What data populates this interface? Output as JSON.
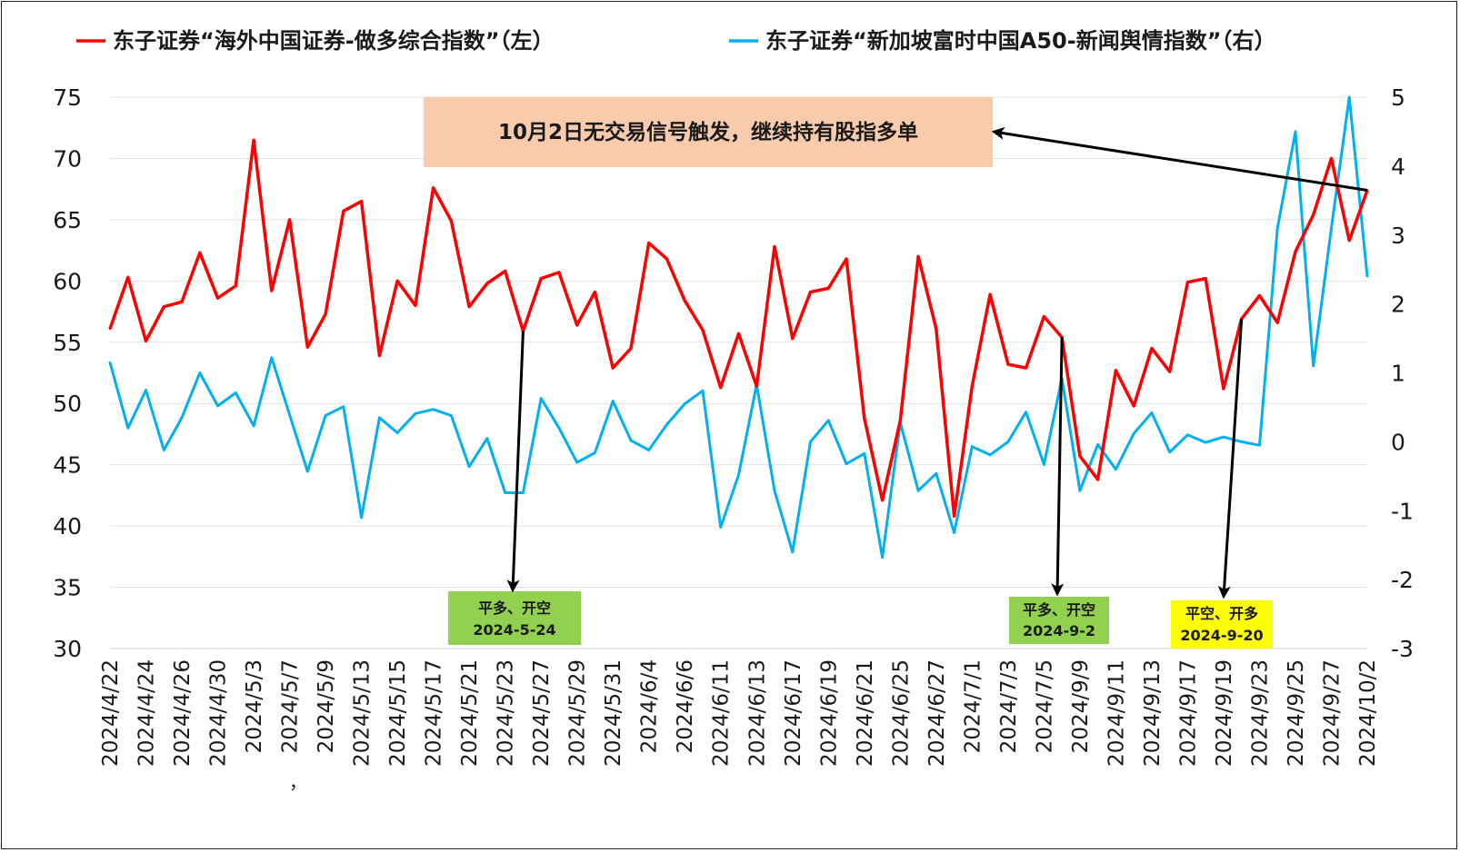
{
  "chart_data": {
    "type": "line",
    "legend_position": "top",
    "series": [
      {
        "name": "东子证券“海外中国证券-做多综合指数”（左）",
        "axis": "left",
        "color": "#ff0000",
        "values": [
          56.1,
          60.3,
          55.1,
          57.9,
          58.3,
          62.3,
          58.6,
          59.6,
          71.5,
          59.2,
          65.0,
          54.6,
          57.3,
          65.7,
          66.5,
          53.9,
          60.0,
          58.0,
          67.6,
          64.9,
          57.9,
          59.8,
          60.8,
          55.9,
          60.2,
          60.7,
          56.4,
          59.1,
          52.9,
          54.5,
          63.1,
          61.8,
          58.4,
          56.0,
          51.3,
          55.7,
          51.4,
          62.8,
          55.3,
          59.1,
          59.4,
          61.8,
          48.8,
          42.1,
          48.6,
          62.0,
          56.1,
          40.8,
          51.4,
          58.9,
          53.2,
          52.9,
          57.1,
          55.4,
          45.7,
          43.8,
          52.7,
          49.8,
          54.5,
          52.6,
          59.9,
          60.2,
          51.2,
          56.9,
          58.8,
          56.6,
          62.4,
          65.4,
          70.0,
          63.3,
          67.4
        ]
      },
      {
        "name": "东子证券“新加坡富时中国A50-新闻舆情指数”（右）",
        "axis": "right",
        "color": "#00b0f0",
        "values": [
          1.15,
          0.2,
          0.75,
          -0.12,
          0.35,
          1.0,
          0.52,
          0.71,
          0.23,
          1.22,
          0.39,
          -0.43,
          0.38,
          0.51,
          -1.1,
          0.35,
          0.13,
          0.41,
          0.47,
          0.38,
          -0.36,
          0.05,
          -0.74,
          -0.74,
          0.63,
          0.2,
          -0.3,
          -0.16,
          0.59,
          0.02,
          -0.12,
          0.25,
          0.55,
          0.74,
          -1.24,
          -0.48,
          0.83,
          -0.71,
          -1.6,
          0.0,
          0.31,
          -0.32,
          -0.17,
          -1.68,
          0.28,
          -0.71,
          -0.46,
          -1.32,
          -0.07,
          -0.19,
          0.0,
          0.43,
          -0.33,
          0.92,
          -0.71,
          -0.04,
          -0.4,
          0.12,
          0.42,
          -0.15,
          0.1,
          -0.01,
          0.07,
          0.0,
          -0.05,
          3.1,
          4.5,
          1.1,
          3.1,
          5.0,
          2.4
        ]
      }
    ],
    "x_tick_labels": [
      "2024/4/22",
      "2024/4/24",
      "2024/4/26",
      "2024/4/30",
      "2024/5/3",
      "2024/5/7",
      "2024/5/9",
      "2024/5/13",
      "2024/5/15",
      "2024/5/17",
      "2024/5/21",
      "2024/5/23",
      "2024/5/27",
      "2024/5/29",
      "2024/5/31",
      "2024/6/4",
      "2024/6/6",
      "2024/6/11",
      "2024/6/13",
      "2024/6/17",
      "2024/6/19",
      "2024/6/21",
      "2024/6/25",
      "2024/6/27",
      "2024/7/1",
      "2024/7/3",
      "2024/7/5",
      "2024/9/9",
      "2024/9/11",
      "2024/9/13",
      "2024/9/17",
      "2024/9/19",
      "2024/9/23",
      "2024/9/25",
      "2024/9/27",
      "2024/10/2"
    ],
    "y_left": {
      "min": 30,
      "max": 75,
      "step": 5
    },
    "y_right": {
      "min": -3,
      "max": 5,
      "step": 1
    },
    "grid": true,
    "annotations": [
      {
        "text": "10月2日无交易信号触发，继续持有股指多单",
        "background": "#f8cbad",
        "arrow_from_index": 70
      },
      {
        "lines": [
          "平多、开空",
          "2024-5-24"
        ],
        "background": "#92d050",
        "arrow_from_index": 23
      },
      {
        "lines": [
          "平多、开空",
          "2024-9-2"
        ],
        "background": "#92d050",
        "arrow_from_index": 53
      },
      {
        "lines": [
          "平空、开多",
          "2024-9-20"
        ],
        "background": "#ffff00",
        "arrow_from_index": 63
      }
    ],
    "stray_mark": "，"
  }
}
